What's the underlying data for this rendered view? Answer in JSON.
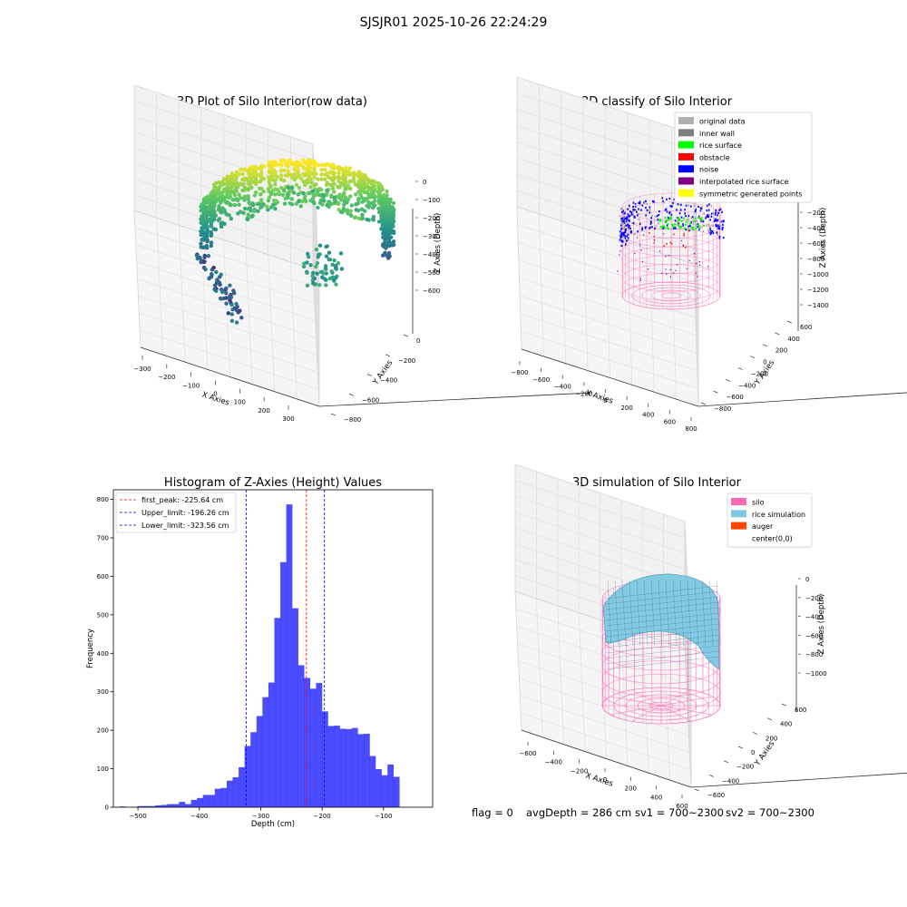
{
  "suptitle": "SJSJR01 2025-10-26 22:24:29",
  "footer": {
    "flag": "flag = 0",
    "avg_depth": "avgDepth = 286 cm",
    "sv1": "sv1 = 700~2300",
    "sv2": "sv2 = 700~2300"
  },
  "colors": {
    "bar": "#0000ff",
    "peak_line": "#ff0000",
    "limit_line": "#0000ff",
    "silo": "#ff69b4",
    "rice": "#7ec8e3",
    "pane": "#f2f2f2"
  },
  "chart_data": [
    {
      "type": "scatter",
      "title": "3D Plot of Silo Interior(row data)",
      "xlabel": "X Axies",
      "ylabel": "Y Axies",
      "zlabel": "Z Axies (Depth)",
      "x_ticks": [
        "−300",
        "−200",
        "−100",
        "0",
        "100",
        "200",
        "300"
      ],
      "y_ticks": [
        "−800",
        "−600",
        "−400",
        "−200",
        "0"
      ],
      "z_ticks": [
        "0",
        "−100",
        "−200",
        "−300",
        "−400",
        "−500",
        "−600"
      ],
      "colormap": "viridis"
    },
    {
      "type": "scatter",
      "title": "3D classify of Silo Interior",
      "xlabel": "X Axies",
      "ylabel": "Y Axies",
      "zlabel": "Z Axies (Depth)",
      "x_ticks": [
        "−800",
        "−600",
        "−400",
        "−200",
        "0",
        "200",
        "400",
        "600",
        "800"
      ],
      "y_ticks": [
        "−800",
        "−600",
        "−400",
        "−200",
        "0",
        "200",
        "400",
        "600"
      ],
      "z_ticks": [
        "−200",
        "−400",
        "−600",
        "−800",
        "−1000",
        "−1200",
        "−1400"
      ],
      "legend": [
        {
          "label": "original data",
          "color": "#b0b0b0"
        },
        {
          "label": "inner wall",
          "color": "#808080"
        },
        {
          "label": "rice surface",
          "color": "#00ff00"
        },
        {
          "label": "obstacle",
          "color": "#ff0000"
        },
        {
          "label": "noise",
          "color": "#0000ff"
        },
        {
          "label": "interpolated rice surface",
          "color": "#800080"
        },
        {
          "label": "symmetric generated points",
          "color": "#ffff00"
        }
      ],
      "legend_loc": "upper right"
    },
    {
      "type": "bar",
      "title": "Histogram of Z-Axies (Height) Values",
      "xlabel": "Depth (cm)",
      "ylabel": "Frequency",
      "xlim": [
        -540,
        -20
      ],
      "ylim": [
        0,
        825
      ],
      "x_ticks": [
        -500,
        -400,
        -300,
        -200,
        -100
      ],
      "x_tick_labels": [
        "−500",
        "−400",
        "−300",
        "−200",
        "−100"
      ],
      "y_ticks": [
        0,
        100,
        200,
        300,
        400,
        500,
        600,
        700,
        800
      ],
      "bin_edges_start": -530,
      "bin_width": 9.7,
      "values": [
        2,
        0,
        1,
        3,
        3,
        3,
        5,
        6,
        8,
        8,
        14,
        8,
        19,
        24,
        32,
        32,
        48,
        50,
        69,
        78,
        104,
        159,
        195,
        237,
        286,
        324,
        492,
        637,
        787,
        517,
        369,
        336,
        308,
        323,
        249,
        211,
        212,
        204,
        203,
        206,
        190,
        191,
        133,
        99,
        83,
        111,
        79
      ],
      "vlines": [
        {
          "label": "first_peak: -225.64 cm",
          "x": -225.64,
          "color": "#ff0000"
        },
        {
          "label": "Upper_limit: -196.26 cm",
          "x": -196.26,
          "color": "#0000ff"
        },
        {
          "label": "Lower_limit: -323.56 cm",
          "x": -323.56,
          "color": "#0000ff"
        }
      ],
      "legend_loc": "upper left"
    },
    {
      "type": "surface",
      "title": "3D simulation of Silo Interior",
      "xlabel": "X Axies",
      "ylabel": "Y Axies",
      "zlabel": "Z Axies (Depth)",
      "x_ticks": [
        "−600",
        "−400",
        "−200",
        "0",
        "200",
        "400",
        "600"
      ],
      "y_ticks": [
        "−600",
        "−400",
        "−200",
        "0",
        "200",
        "400",
        "600"
      ],
      "z_ticks": [
        "0",
        "−200",
        "−400",
        "−600",
        "−800",
        "−1000"
      ],
      "legend": [
        {
          "label": "silo",
          "color": "#ff69b4"
        },
        {
          "label": "rice simulation",
          "color": "#7ec8e3"
        },
        {
          "label": "auger",
          "color": "#ff4500"
        },
        {
          "label": "center(0,0)",
          "color": "none"
        }
      ],
      "legend_loc": "upper right"
    }
  ]
}
